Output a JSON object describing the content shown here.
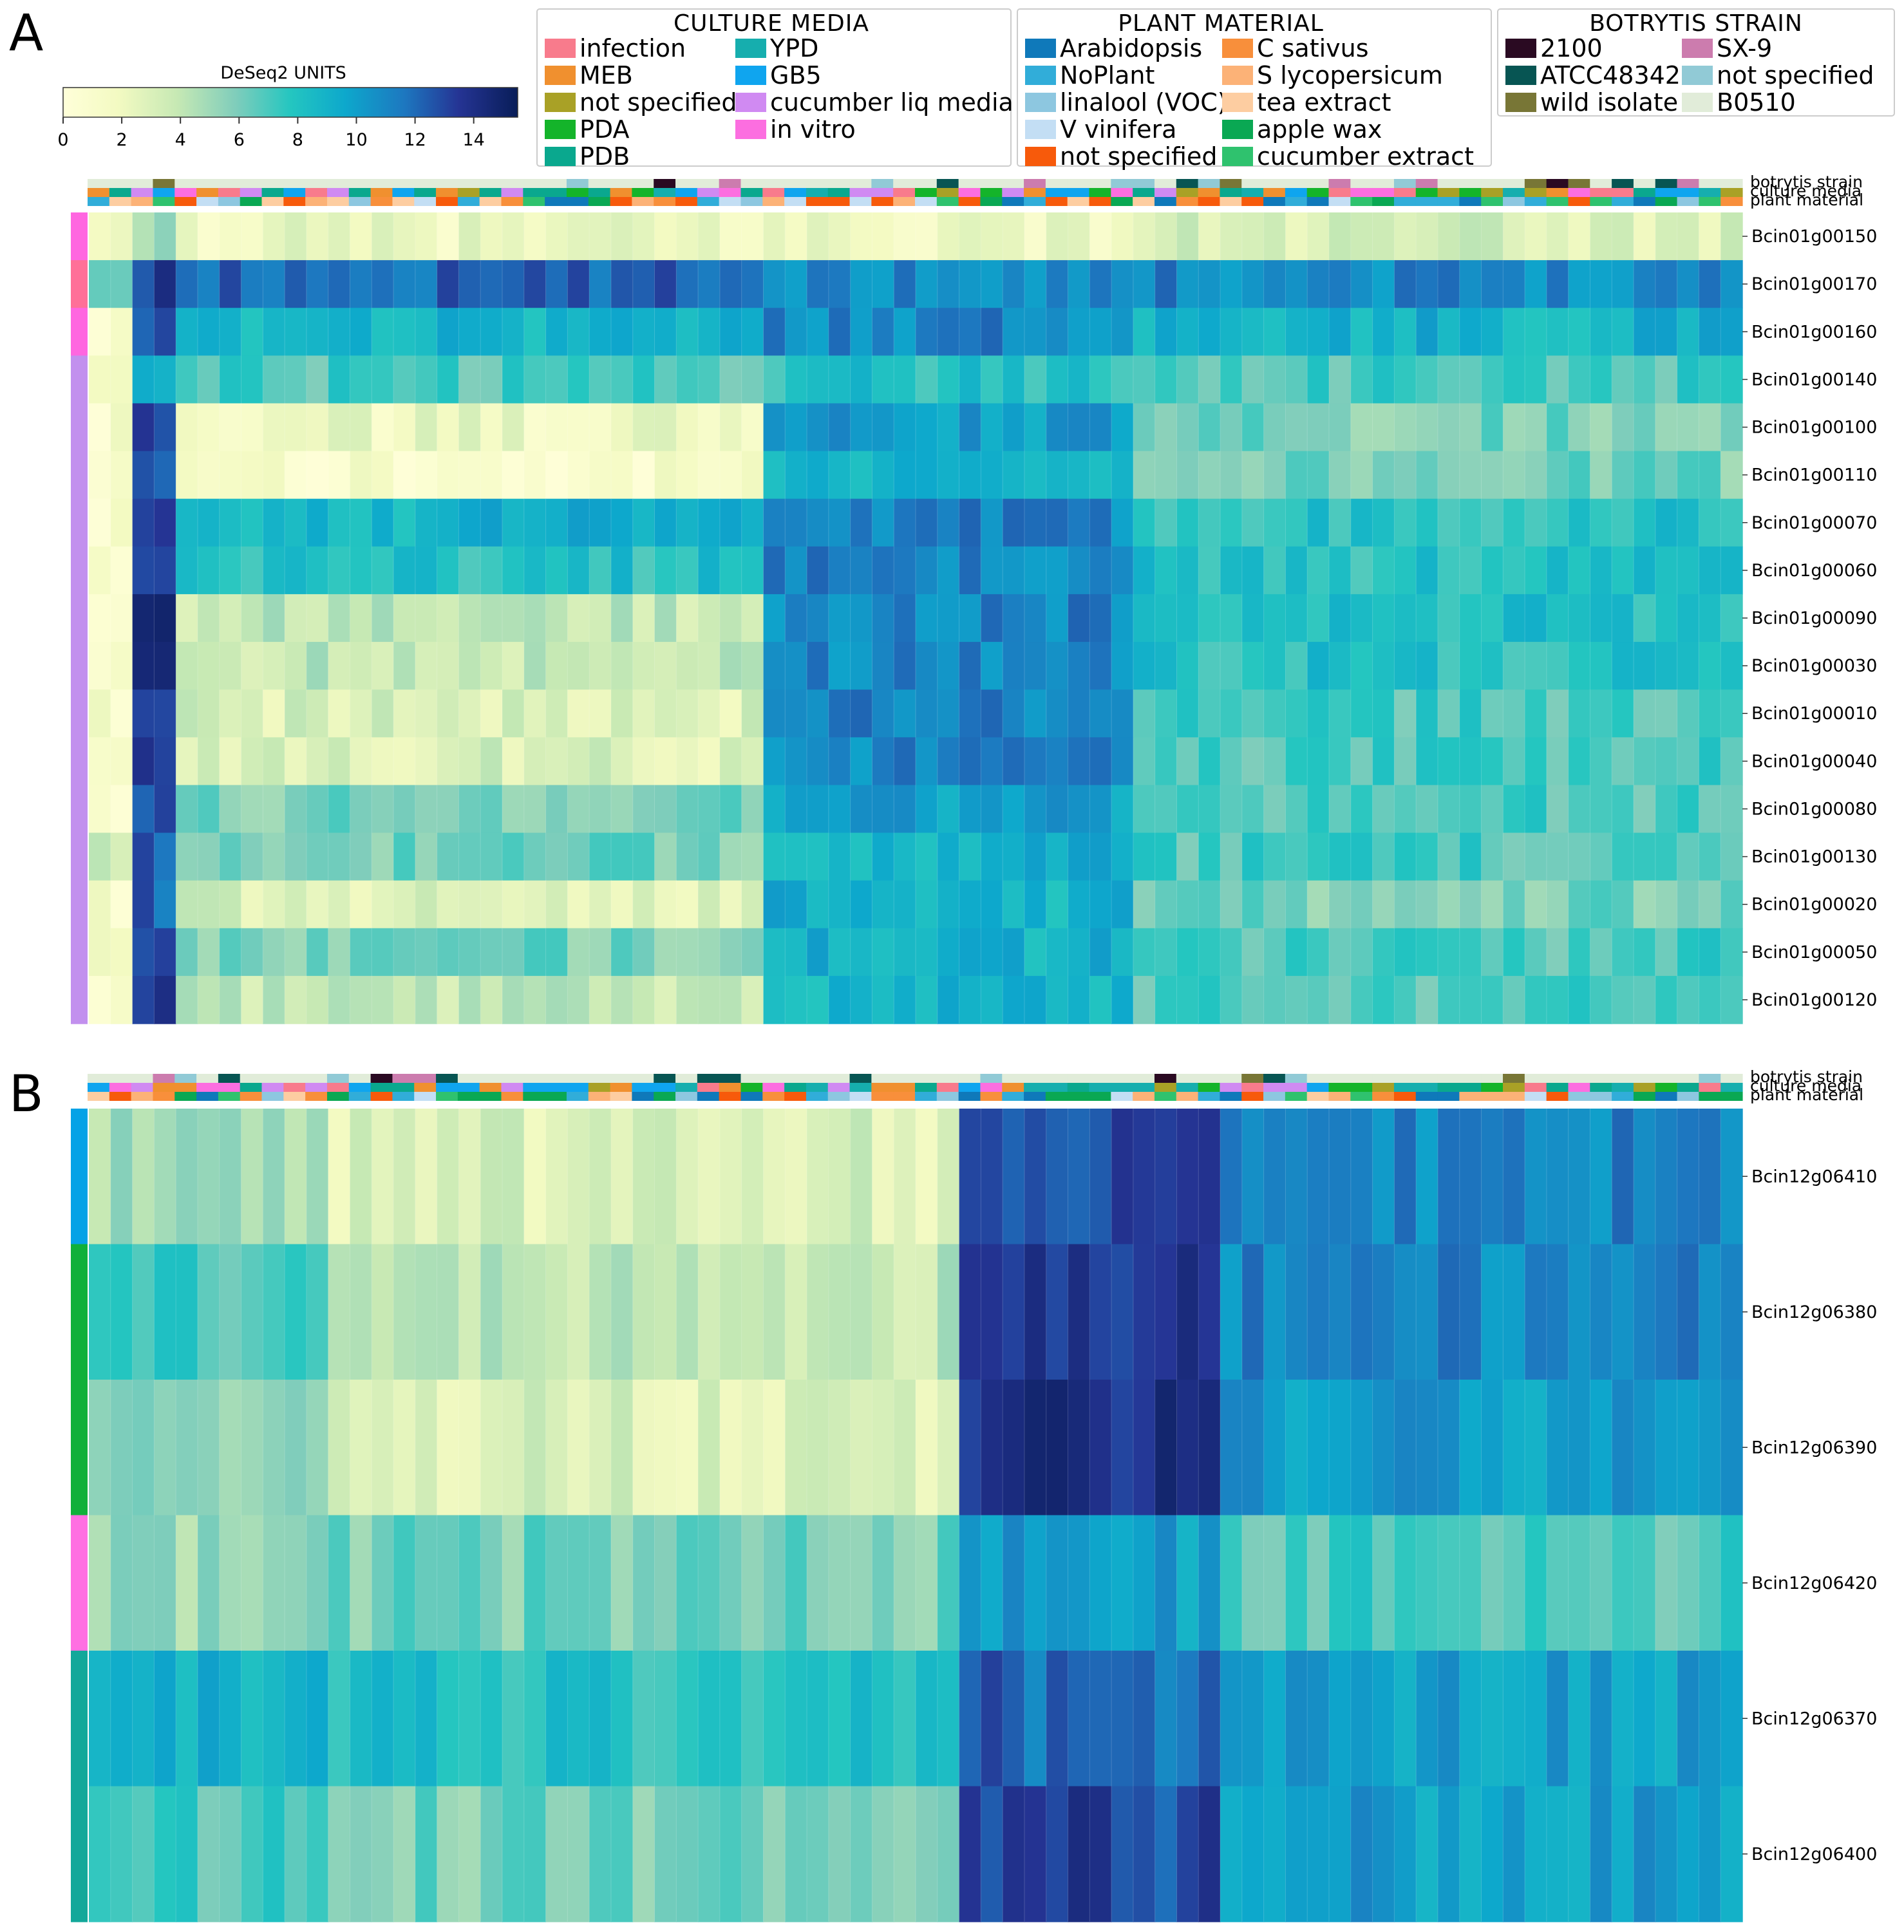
{
  "panels": [
    {
      "letter": "A",
      "rows": [
        "Bcin01g00150",
        "Bcin01g00170",
        "Bcin01g00160",
        "Bcin01g00140",
        "Bcin01g00100",
        "Bcin01g00110",
        "Bcin01g00070",
        "Bcin01g00060",
        "Bcin01g00090",
        "Bcin01g00030",
        "Bcin01g00010",
        "Bcin01g00040",
        "Bcin01g00080",
        "Bcin01g00130",
        "Bcin01g00020",
        "Bcin01g00050",
        "Bcin01g00120"
      ],
      "row_cluster_colors": [
        "#ff66e0",
        "#ff7098",
        "#ff66e0",
        "#c290ee",
        "#c290ee",
        "#c290ee",
        "#c290ee",
        "#c290ee",
        "#c290ee",
        "#c290ee",
        "#c290ee",
        "#c290ee",
        "#c290ee",
        "#c290ee",
        "#c290ee",
        "#c290ee",
        "#c290ee"
      ]
    },
    {
      "letter": "B",
      "rows": [
        "Bcin12g06410",
        "Bcin12g06380",
        "Bcin12g06390",
        "Bcin12g06420",
        "Bcin12g06370",
        "Bcin12g06400"
      ],
      "row_cluster_colors": [
        "#05a2e6",
        "#10b03a",
        "#10b03a",
        "#ff6fe2",
        "#13a89a",
        "#13a89a"
      ]
    }
  ],
  "annotation_labels": [
    "botrytis strain",
    "culture media",
    "plant material"
  ],
  "colorbar": {
    "title": "DeSeq2 UNITS",
    "ticks": [
      "0",
      "2",
      "4",
      "6",
      "8",
      "10",
      "12",
      "14"
    ],
    "min": 0,
    "max": 15.5
  },
  "legends": [
    {
      "title": "CULTURE MEDIA",
      "entries": [
        {
          "label": "infection",
          "color": "#f87b8c"
        },
        {
          "label": "MEB",
          "color": "#f0902f"
        },
        {
          "label": "not specified",
          "color": "#a9a126"
        },
        {
          "label": "PDA",
          "color": "#14b42a"
        },
        {
          "label": "PDB",
          "color": "#0aa88e"
        },
        {
          "label": "YPD",
          "color": "#16aeae"
        },
        {
          "label": "GB5",
          "color": "#0fa5ef"
        },
        {
          "label": "cucumber liq media",
          "color": "#d08af2"
        },
        {
          "label": "in vitro",
          "color": "#fc6ee0"
        }
      ]
    },
    {
      "title": "PLANT MATERIAL",
      "entries": [
        {
          "label": "Arabidopsis",
          "color": "#0f79ba"
        },
        {
          "label": "NoPlant",
          "color": "#31add9"
        },
        {
          "label": "linalool (VOC)",
          "color": "#8dc7e0"
        },
        {
          "label": "V vinifera",
          "color": "#c3def4"
        },
        {
          "label": "not specified",
          "color": "#f75a0b"
        },
        {
          "label": "C sativus",
          "color": "#f88f3b"
        },
        {
          "label": "S lycopersicum",
          "color": "#fcb277"
        },
        {
          "label": "tea extract",
          "color": "#fdcda1"
        },
        {
          "label": "apple wax",
          "color": "#0aa853"
        },
        {
          "label": "cucumber extract",
          "color": "#2fc26e"
        }
      ]
    },
    {
      "title": "BOTRYTIS STRAIN",
      "entries": [
        {
          "label": "2100",
          "color": "#2a0a22"
        },
        {
          "label": "ATCC48342",
          "color": "#075553"
        },
        {
          "label": "wild isolate",
          "color": "#787636"
        },
        {
          "label": "SX-9",
          "color": "#cc7cae"
        },
        {
          "label": "not specified",
          "color": "#91cad6"
        },
        {
          "label": "B0510",
          "color": "#e1ecd9"
        }
      ]
    }
  ],
  "chart_data": [
    {
      "type": "heatmap",
      "title": "A",
      "colorbar_label": "DeSeq2 UNITS",
      "vmin": 0,
      "vmax": 15.5,
      "n_columns": 76,
      "rows": [
        "Bcin01g00150",
        "Bcin01g00170",
        "Bcin01g00160",
        "Bcin01g00140",
        "Bcin01g00100",
        "Bcin01g00110",
        "Bcin01g00070",
        "Bcin01g00060",
        "Bcin01g00090",
        "Bcin01g00030",
        "Bcin01g00010",
        "Bcin01g00040",
        "Bcin01g00080",
        "Bcin01g00130",
        "Bcin01g00020",
        "Bcin01g00050",
        "Bcin01g00120"
      ],
      "column_annotations": [
        "botrytis strain",
        "culture media",
        "plant material"
      ],
      "column_groups_approx": [
        {
          "columns": "1-2",
          "typical_values": [
            1,
            7,
            1,
            1,
            1,
            1,
            1,
            1,
            1,
            1,
            1,
            1,
            1,
            3,
            1,
            1,
            1
          ]
        },
        {
          "columns": "3-4",
          "typical_values": [
            5,
            13,
            13,
            9,
            13,
            12,
            13,
            13,
            14,
            15,
            13,
            14,
            12,
            12,
            12,
            12,
            13
          ]
        },
        {
          "columns": "5-31",
          "typical_values": [
            2,
            12,
            9,
            7,
            2,
            1,
            9,
            8,
            4,
            4,
            3,
            3,
            6,
            6,
            3,
            6,
            4
          ]
        },
        {
          "columns": "32-48",
          "typical_values": [
            2,
            11,
            11,
            8,
            10,
            9,
            11,
            11,
            11,
            11,
            11,
            11,
            10,
            9,
            9,
            9,
            9
          ]
        },
        {
          "columns": "49-76",
          "typical_values": [
            3,
            11,
            9,
            7,
            6,
            6,
            8,
            8,
            8,
            8,
            7,
            7,
            7,
            7,
            6,
            7,
            7
          ]
        }
      ]
    },
    {
      "type": "heatmap",
      "title": "B",
      "colorbar_label": "DeSeq2 UNITS",
      "vmin": 0,
      "vmax": 15.5,
      "n_columns": 76,
      "rows": [
        "Bcin12g06410",
        "Bcin12g06380",
        "Bcin12g06390",
        "Bcin12g06420",
        "Bcin12g06370",
        "Bcin12g06400"
      ],
      "column_annotations": [
        "botrytis strain",
        "culture media",
        "plant material"
      ],
      "column_groups_approx": [
        {
          "columns": "1-11",
          "typical_values": [
            5,
            7,
            6,
            5,
            9,
            7
          ]
        },
        {
          "columns": "12-40",
          "typical_values": [
            3,
            4,
            3,
            6,
            8,
            6
          ]
        },
        {
          "columns": "41-52",
          "typical_values": [
            13,
            14,
            14,
            10,
            12,
            13
          ]
        },
        {
          "columns": "53-76",
          "typical_values": [
            11,
            11,
            10,
            7,
            10,
            10
          ]
        }
      ]
    }
  ]
}
